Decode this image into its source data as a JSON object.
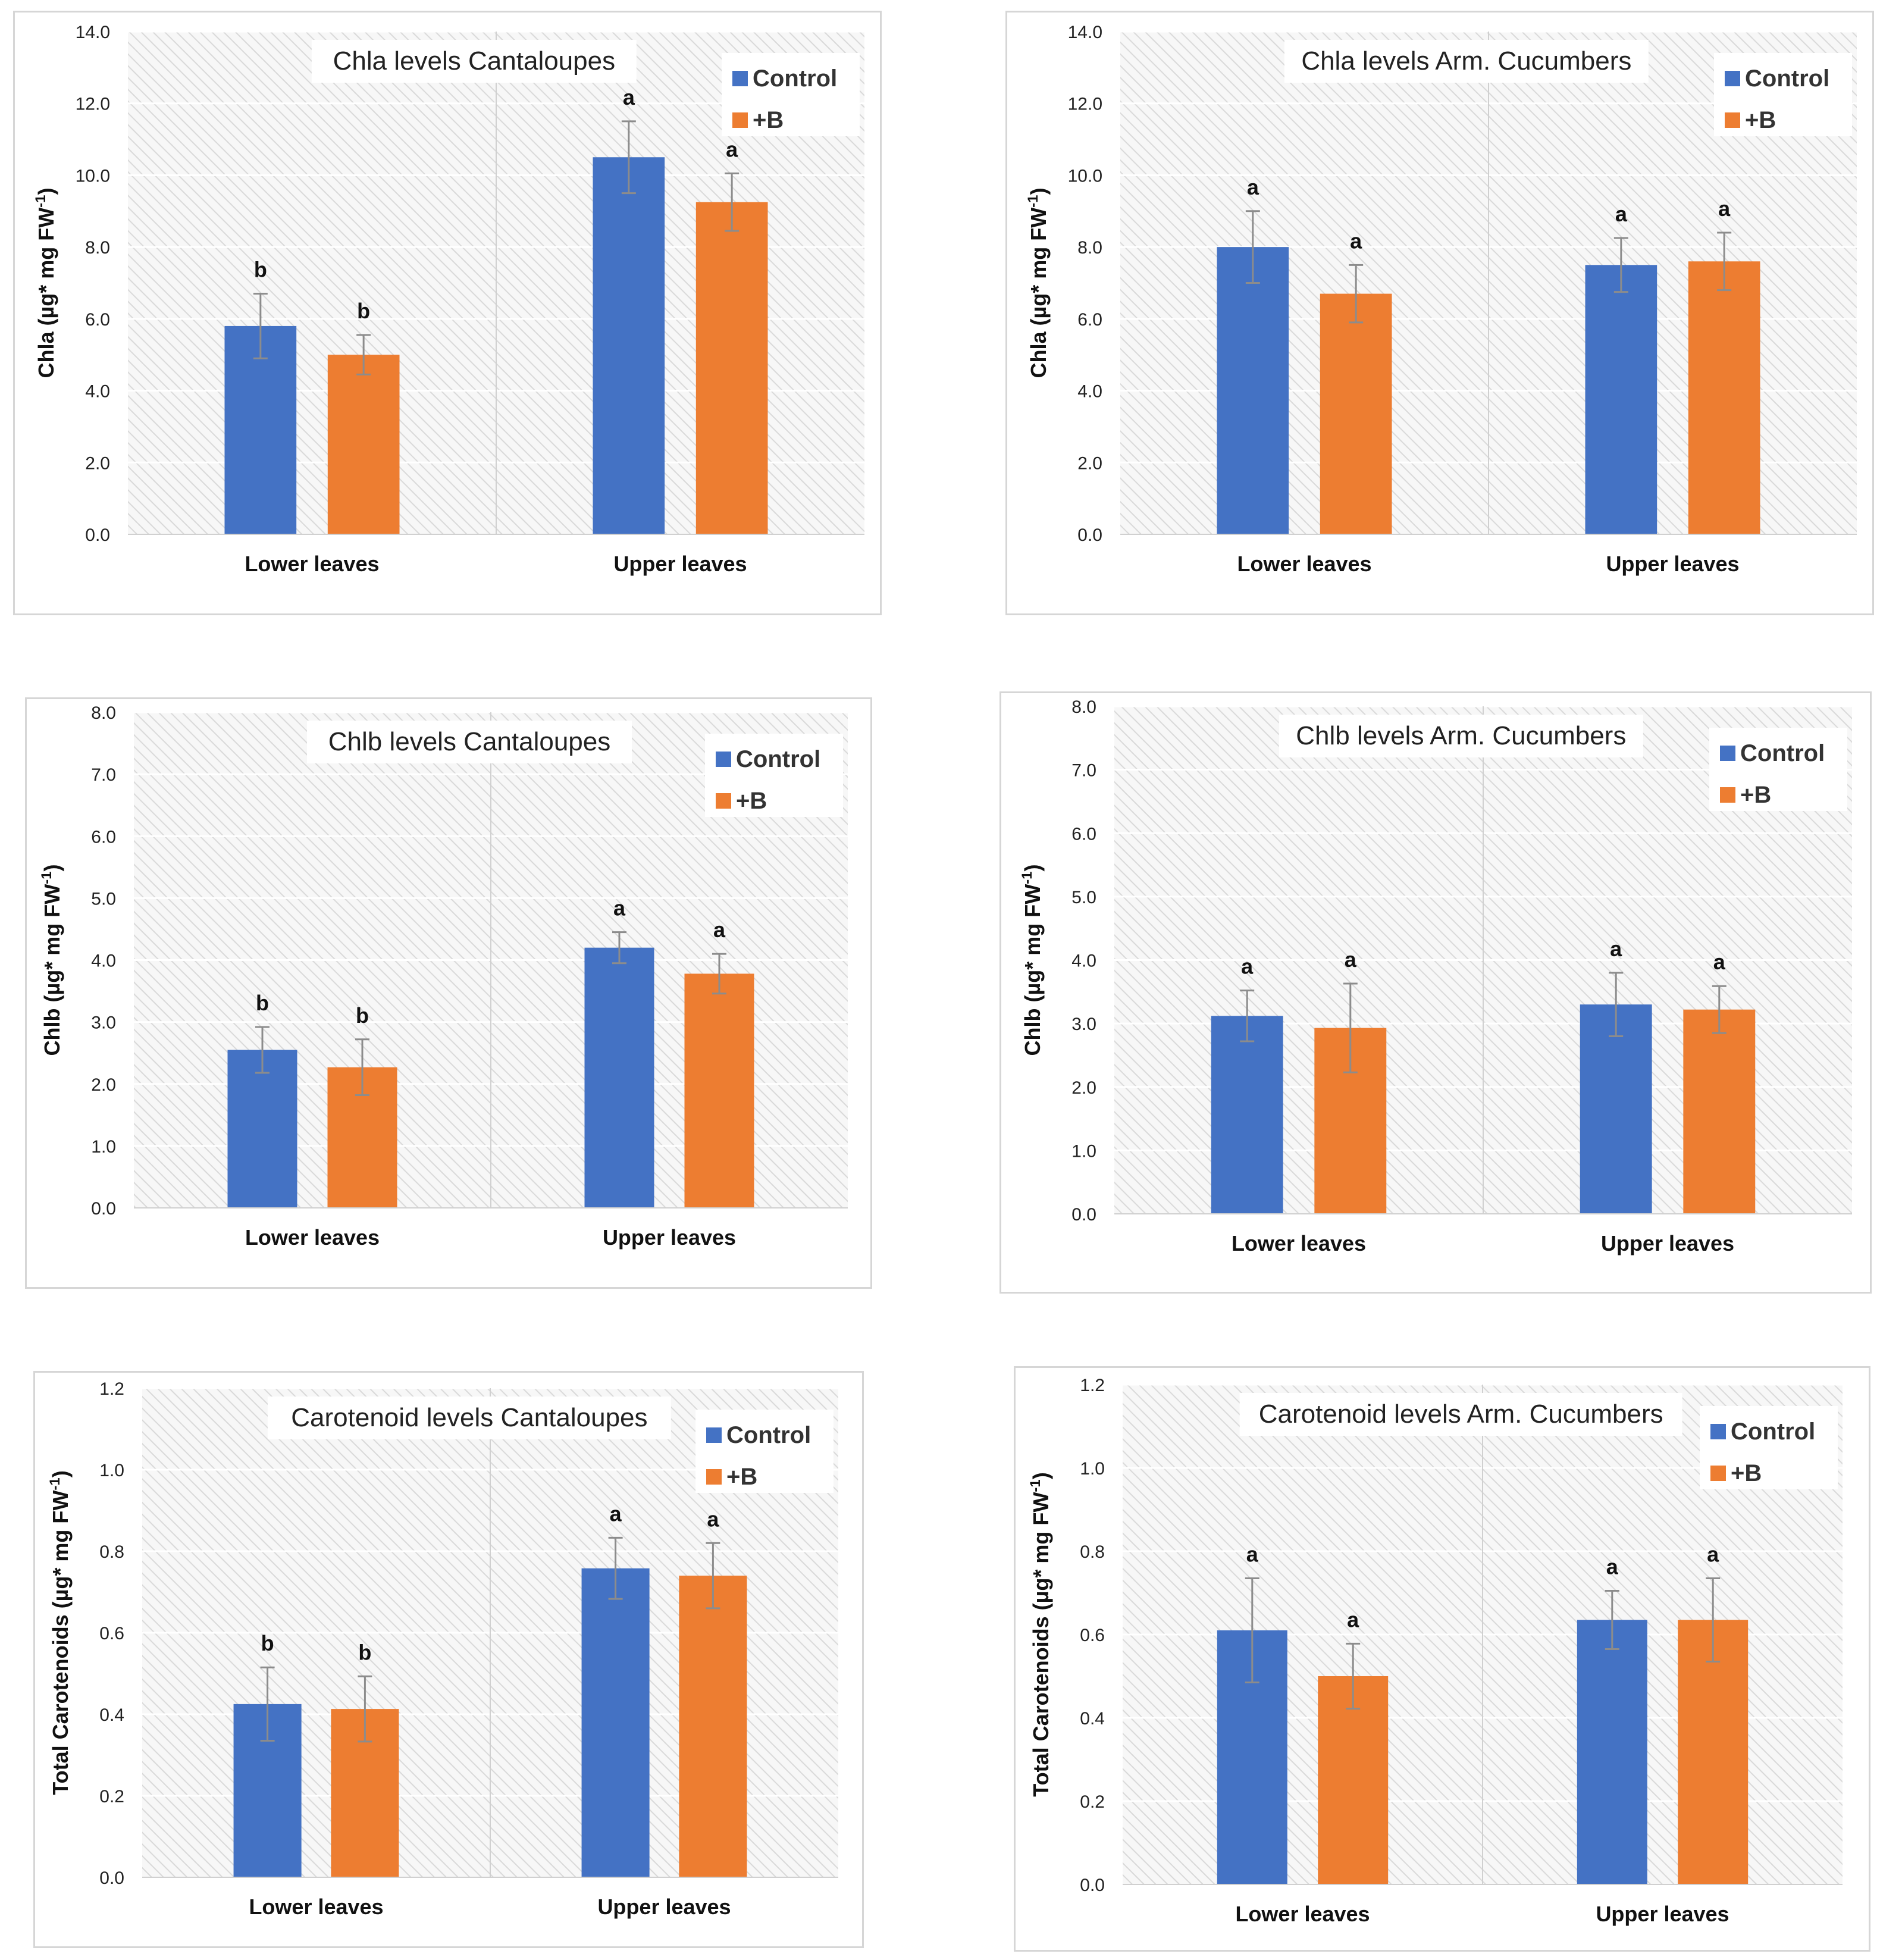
{
  "colors": {
    "control": "#4472C4",
    "boron": "#ED7D31",
    "errorbar": "#8c8c8c"
  },
  "legend": {
    "control_label": "Control",
    "boron_label": "+B"
  },
  "chart_data": [
    {
      "type": "bar",
      "title": "Chla levels Cantaloupes",
      "ylabel": "Chla (µg* mg FW",
      "ylabel_sup": "-1",
      "ylabel_tail": ")",
      "ylim": [
        0,
        14
      ],
      "yticks": [
        "0.0",
        "2.0",
        "4.0",
        "6.0",
        "8.0",
        "10.0",
        "12.0",
        "14.0"
      ],
      "categories": [
        "Lower leaves",
        "Upper leaves"
      ],
      "series": [
        {
          "name": "Control",
          "values": [
            5.8,
            10.5
          ],
          "errors": [
            0.9,
            1.0
          ],
          "letters": [
            "b",
            "a"
          ]
        },
        {
          "name": "+B",
          "values": [
            5.0,
            9.25
          ],
          "errors": [
            0.55,
            0.8
          ],
          "letters": [
            "b",
            "a"
          ]
        }
      ]
    },
    {
      "type": "bar",
      "title": "Chla levels Arm. Cucumbers",
      "ylabel": "Chla (µg* mg FW",
      "ylabel_sup": "-1",
      "ylabel_tail": ")",
      "ylim": [
        0,
        14
      ],
      "yticks": [
        "0.0",
        "2.0",
        "4.0",
        "6.0",
        "8.0",
        "10.0",
        "12.0",
        "14.0"
      ],
      "categories": [
        "Lower leaves",
        "Upper leaves"
      ],
      "series": [
        {
          "name": "Control",
          "values": [
            8.0,
            7.5
          ],
          "errors": [
            1.0,
            0.75
          ],
          "letters": [
            "a",
            "a"
          ]
        },
        {
          "name": "+B",
          "values": [
            6.7,
            7.6
          ],
          "errors": [
            0.8,
            0.8
          ],
          "letters": [
            "a",
            "a"
          ]
        }
      ]
    },
    {
      "type": "bar",
      "title": "Chlb levels Cantaloupes",
      "ylabel": "Chlb (µg* mg FW",
      "ylabel_sup": "-1",
      "ylabel_tail": ")",
      "ylim": [
        0,
        8
      ],
      "yticks": [
        "0.0",
        "1.0",
        "2.0",
        "3.0",
        "4.0",
        "5.0",
        "6.0",
        "7.0",
        "8.0"
      ],
      "categories": [
        "Lower leaves",
        "Upper leaves"
      ],
      "series": [
        {
          "name": "Control",
          "values": [
            2.55,
            4.2
          ],
          "errors": [
            0.37,
            0.25
          ],
          "letters": [
            "b",
            "a"
          ]
        },
        {
          "name": "+B",
          "values": [
            2.27,
            3.78
          ],
          "errors": [
            0.45,
            0.32
          ],
          "letters": [
            "b",
            "a"
          ]
        }
      ]
    },
    {
      "type": "bar",
      "title": "Chlb levels Arm. Cucumbers",
      "ylabel": "Chlb (µg* mg FW",
      "ylabel_sup": "-1",
      "ylabel_tail": ")",
      "ylim": [
        0,
        8
      ],
      "yticks": [
        "0.0",
        "1.0",
        "2.0",
        "3.0",
        "4.0",
        "5.0",
        "6.0",
        "7.0",
        "8.0"
      ],
      "categories": [
        "Lower leaves",
        "Upper leaves"
      ],
      "series": [
        {
          "name": "Control",
          "values": [
            3.12,
            3.3
          ],
          "errors": [
            0.4,
            0.5
          ],
          "letters": [
            "a",
            "a"
          ]
        },
        {
          "name": "+B",
          "values": [
            2.93,
            3.22
          ],
          "errors": [
            0.7,
            0.37
          ],
          "letters": [
            "a",
            "a"
          ]
        }
      ]
    },
    {
      "type": "bar",
      "title": "Carotenoid levels Cantaloupes",
      "ylabel": "Total Carotenoids (µg* mg FW",
      "ylabel_sup": "-1",
      "ylabel_tail": ")",
      "ylim": [
        0,
        1.2
      ],
      "yticks": [
        "0.0",
        "0.2",
        "0.4",
        "0.6",
        "0.8",
        "1.0",
        "1.2"
      ],
      "categories": [
        "Lower leaves",
        "Upper leaves"
      ],
      "series": [
        {
          "name": "Control",
          "values": [
            0.425,
            0.758
          ],
          "errors": [
            0.09,
            0.075
          ],
          "letters": [
            "b",
            "a"
          ]
        },
        {
          "name": "+B",
          "values": [
            0.413,
            0.74
          ],
          "errors": [
            0.08,
            0.08
          ],
          "letters": [
            "b",
            "a"
          ]
        }
      ]
    },
    {
      "type": "bar",
      "title": "Carotenoid levels Arm. Cucumbers",
      "ylabel": "Total Carotenoids (µg* mg FW",
      "ylabel_sup": "-1",
      "ylabel_tail": ")",
      "ylim": [
        0,
        1.2
      ],
      "yticks": [
        "0.0",
        "0.2",
        "0.4",
        "0.6",
        "0.8",
        "1.0",
        "1.2"
      ],
      "categories": [
        "Lower leaves",
        "Upper leaves"
      ],
      "series": [
        {
          "name": "Control",
          "values": [
            0.61,
            0.635
          ],
          "errors": [
            0.125,
            0.07
          ],
          "letters": [
            "a",
            "a"
          ]
        },
        {
          "name": "+B",
          "values": [
            0.5,
            0.635
          ],
          "errors": [
            0.078,
            0.1
          ],
          "letters": [
            "a",
            "a"
          ]
        }
      ]
    }
  ]
}
